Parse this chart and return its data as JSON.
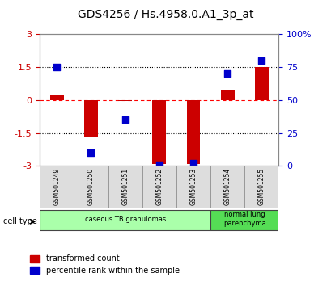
{
  "title": "GDS4256 / Hs.4958.0.A1_3p_at",
  "samples": [
    "GSM501249",
    "GSM501250",
    "GSM501251",
    "GSM501252",
    "GSM501253",
    "GSM501254",
    "GSM501255"
  ],
  "transformed_count": [
    0.2,
    -1.7,
    -0.05,
    -2.9,
    -2.9,
    0.45,
    1.5
  ],
  "percentile_rank": [
    75,
    10,
    35,
    1,
    2,
    70,
    80
  ],
  "ylim_left": [
    -3,
    3
  ],
  "ylim_right": [
    0,
    100
  ],
  "yticks_left": [
    -3,
    -1.5,
    0,
    1.5,
    3
  ],
  "yticks_right": [
    0,
    25,
    50,
    75,
    100
  ],
  "ytick_labels_left": [
    "-3",
    "-1.5",
    "0",
    "1.5",
    "3"
  ],
  "ytick_labels_right": [
    "0",
    "25",
    "50",
    "75",
    "100%"
  ],
  "hlines": [
    1.5,
    0,
    -1.5
  ],
  "hline_styles": [
    "dotted",
    "dashed_red",
    "dotted"
  ],
  "bar_color": "#cc0000",
  "dot_color": "#0000cc",
  "bar_width": 0.4,
  "groups": [
    {
      "label": "caseous TB granulomas",
      "start": 0,
      "end": 4,
      "color": "#aaffaa"
    },
    {
      "label": "normal lung\nparenchyma",
      "start": 5,
      "end": 6,
      "color": "#55dd55"
    }
  ],
  "cell_type_label": "cell type",
  "legend_bar_label": "transformed count",
  "legend_dot_label": "percentile rank within the sample",
  "bg_color": "#ffffff",
  "plot_bg": "#ffffff",
  "spine_color": "#888888",
  "tick_label_color_left": "#cc0000",
  "tick_label_color_right": "#0000cc"
}
